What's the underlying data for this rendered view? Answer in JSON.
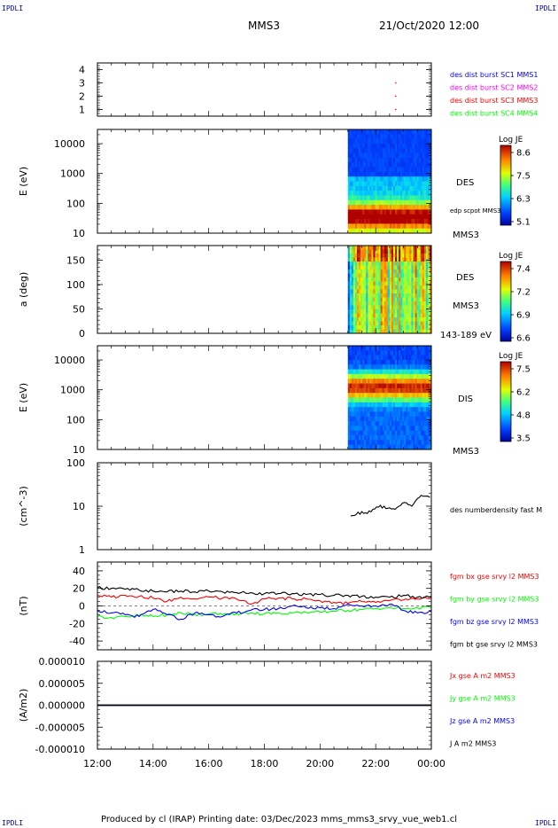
{
  "page": {
    "corner_label": "IPDLI",
    "spacecraft": "MMS3",
    "datetime": "21/Oct/2020 12:00",
    "footer": "Produced by cl (IRAP)    Printing date: 03/Dec/2023    mms_mms3_srvy_vue_web1.cl"
  },
  "colors": {
    "blue": "#0000ff",
    "magenta": "#ff00ff",
    "red": "#ff0000",
    "green": "#00ff00",
    "black": "#000000"
  },
  "chart_data": [
    {
      "id": "burst",
      "type": "scatter",
      "yticks": [
        1,
        2,
        3,
        4
      ],
      "ylim": [
        0.5,
        4.5
      ],
      "points": [
        {
          "x": 22.72,
          "y": 3
        },
        {
          "x": 22.72,
          "y": 2
        },
        {
          "x": 22.72,
          "y": 1
        }
      ],
      "legend": [
        {
          "text": "des dist burst SC1 MMS1",
          "color": "#0000ff"
        },
        {
          "text": "des dist burst SC2 MMS2",
          "color": "#ff00ff"
        },
        {
          "text": "des dist burst SC3 MMS3",
          "color": "#ff0000"
        },
        {
          "text": "des dist burst SC4 MMS4",
          "color": "#00ff00"
        }
      ]
    },
    {
      "id": "des-energy",
      "type": "heatmap",
      "ylabel": "E (eV)",
      "yscale": "log",
      "ylim": [
        10,
        30000
      ],
      "yticks": [
        "10",
        "100",
        "1000",
        "10000"
      ],
      "data_start": 21.0,
      "right_labels": [
        {
          "text": "DES",
          "size": 10
        },
        {
          "text": "edp scpot MMS3",
          "size": 7
        },
        {
          "text": "MMS3",
          "size": 10
        }
      ],
      "colorbar": {
        "title": "Log JE",
        "ticks": [
          "8.6",
          "7.5",
          "6.3",
          "5.1"
        ]
      }
    },
    {
      "id": "des-pitch",
      "type": "heatmap",
      "ylabel": "a (deg)",
      "ylim": [
        0,
        180
      ],
      "yticks": [
        "0",
        "50",
        "100",
        "150"
      ],
      "data_start": 21.0,
      "right_labels": [
        {
          "text": "DES",
          "size": 10
        },
        {
          "text": "MMS3",
          "size": 10
        },
        {
          "text": "143-189 eV",
          "size": 10
        }
      ],
      "colorbar": {
        "title": "Log JE",
        "ticks": [
          "7.4",
          "7.2",
          "6.9",
          "6.6"
        ]
      }
    },
    {
      "id": "dis-energy",
      "type": "heatmap",
      "ylabel": "E (eV)",
      "yscale": "log",
      "ylim": [
        10,
        30000
      ],
      "yticks": [
        "10",
        "100",
        "1000",
        "10000"
      ],
      "data_start": 21.0,
      "right_labels": [
        {
          "text": "DIS",
          "size": 10
        },
        {
          "text": "MMS3",
          "size": 10
        }
      ],
      "colorbar": {
        "title": "Log JE",
        "ticks": [
          "7.5",
          "6.2",
          "4.8",
          "3.5"
        ]
      }
    },
    {
      "id": "density",
      "type": "line",
      "ylabel": "(cm^-3)",
      "yscale": "log",
      "ylim": [
        1,
        100
      ],
      "yticks": [
        "1",
        "10",
        "100"
      ],
      "series": [
        {
          "name": "des numberdensity fast M",
          "color": "#000000",
          "x": [
            21.1,
            21.3,
            21.5,
            21.7,
            21.9,
            22.1,
            22.3,
            22.5,
            22.7,
            22.9,
            23.1,
            23.3,
            23.5,
            23.7,
            23.95
          ],
          "y": [
            6,
            6.5,
            7.5,
            6.8,
            8.5,
            9.5,
            10,
            9.2,
            8.5,
            10.5,
            12,
            10,
            15,
            17,
            16
          ]
        }
      ]
    },
    {
      "id": "bfield",
      "type": "line",
      "ylabel": "(nT)",
      "ylim": [
        -50,
        50
      ],
      "yticks": [
        "-40",
        "-20",
        "0",
        "20",
        "40"
      ],
      "series": [
        {
          "name": "fgm bx gse srvy l2 MMS3",
          "color": "#ff0000",
          "x": [
            12,
            12.5,
            13,
            13.5,
            14,
            14.5,
            15,
            15.5,
            16,
            16.5,
            17,
            17.5,
            18,
            18.5,
            19,
            19.5,
            20,
            20.5,
            21,
            21.5,
            22,
            22.5,
            23,
            23.5,
            24
          ],
          "y": [
            12,
            10,
            12,
            11,
            9,
            5,
            10,
            8,
            10,
            9,
            8,
            2,
            8,
            9,
            8,
            8,
            6,
            4,
            3,
            5,
            4,
            6,
            7,
            8,
            9
          ]
        },
        {
          "name": "fgm by gse srvy l2 MMS3",
          "color": "#00ff00",
          "x": [
            12,
            12.5,
            13,
            13.5,
            14,
            14.5,
            15,
            15.5,
            16,
            16.5,
            17,
            17.5,
            18,
            18.5,
            19,
            19.5,
            20,
            20.5,
            21,
            21.5,
            22,
            22.5,
            23,
            23.5,
            24
          ],
          "y": [
            -12,
            -13,
            -12,
            -11,
            -12,
            -10,
            -8,
            -10,
            -9,
            -10,
            -9,
            -8,
            -9,
            -8,
            -8,
            -7,
            -7,
            -6,
            -5,
            -4,
            -3,
            -2,
            -3,
            -2,
            -2
          ]
        },
        {
          "name": "fgm bz gse srvy l2 MMS3",
          "color": "#0000ff",
          "x": [
            12,
            12.5,
            13,
            13.5,
            14,
            14.5,
            15,
            15.5,
            16,
            16.5,
            17,
            17.5,
            18,
            18.5,
            19,
            19.5,
            20,
            20.5,
            21,
            21.5,
            22,
            22.5,
            23,
            23.5,
            24
          ],
          "y": [
            -5,
            -8,
            -10,
            -12,
            -4,
            -10,
            -15,
            -8,
            -10,
            -12,
            -8,
            -5,
            -4,
            -3,
            0,
            -2,
            -2,
            -3,
            2,
            0,
            0,
            2,
            -5,
            -8,
            -6
          ]
        },
        {
          "name": "fgm bt gse srvy l2 MMS3",
          "color": "#000000",
          "x": [
            12,
            12.5,
            13,
            13.5,
            14,
            14.5,
            15,
            15.5,
            16,
            16.5,
            17,
            17.5,
            18,
            18.5,
            19,
            19.5,
            20,
            20.5,
            21,
            21.5,
            22,
            22.5,
            23,
            23.5,
            24
          ],
          "y": [
            21,
            20,
            19,
            18,
            17,
            16,
            17,
            16,
            17,
            16,
            15,
            15,
            14,
            14,
            14,
            13,
            13,
            12,
            12,
            11,
            10,
            10,
            12,
            10,
            11
          ]
        }
      ]
    },
    {
      "id": "current",
      "type": "line",
      "ylabel": "(A/m2)",
      "ylim": [
        -1e-05,
        1e-05
      ],
      "yticks": [
        "-0.000010",
        "-0.000005",
        "0.000000",
        "0.000005",
        "0.000010"
      ],
      "series": [
        {
          "name": "Jx gse A m2 MMS3",
          "color": "#ff0000",
          "x": [
            12,
            24
          ],
          "y": [
            0,
            0
          ]
        },
        {
          "name": "Jy gse A m2 MMS3",
          "color": "#00ff00",
          "x": [
            12,
            24
          ],
          "y": [
            0,
            0
          ]
        },
        {
          "name": "Jz gse A m2 MMS3",
          "color": "#0000ff",
          "x": [
            12,
            24
          ],
          "y": [
            0,
            0
          ]
        },
        {
          "name": "J A m2 MMS3",
          "color": "#000000",
          "x": [
            12,
            24
          ],
          "y": [
            0,
            0
          ]
        }
      ],
      "xticks": [
        "12:00",
        "14:00",
        "16:00",
        "18:00",
        "20:00",
        "22:00",
        "00:00"
      ],
      "xlim": [
        12,
        24
      ]
    }
  ]
}
